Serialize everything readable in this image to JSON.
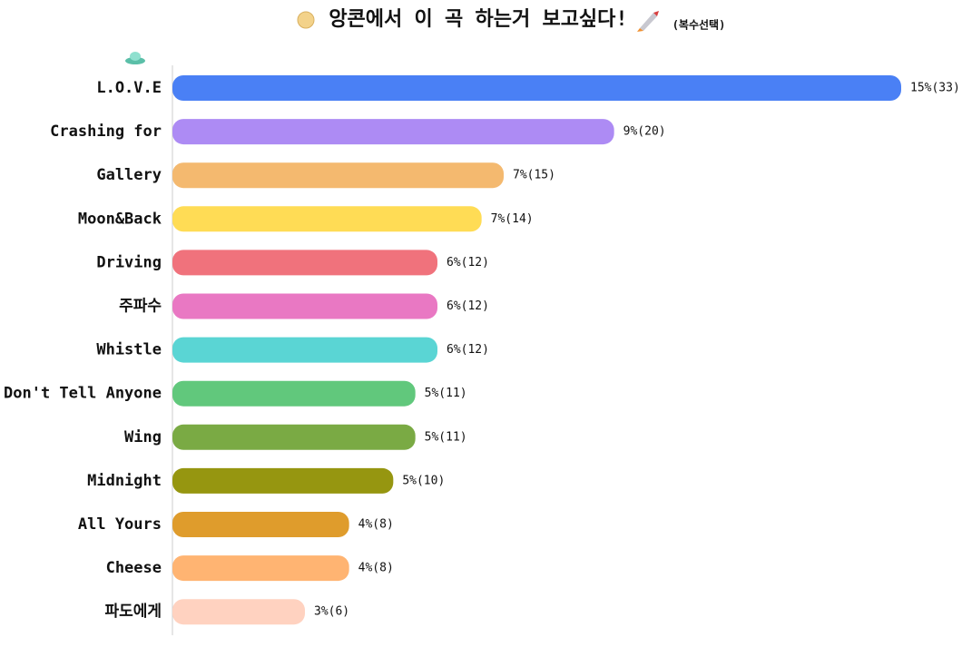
{
  "chart_data": {
    "type": "bar",
    "orientation": "horizontal",
    "title": "앙콘에서 이 곡 하는거 보고싶다!",
    "subtitle": "(복수선택)",
    "categories": [
      "L.O.V.E",
      "Crashing for",
      "Gallery",
      "Moon&Back",
      "Driving",
      "주파수",
      "Whistle",
      "Don't Tell Anyone",
      "Wing",
      "Midnight",
      "All Yours",
      "Cheese",
      "파도에게"
    ],
    "values": [
      33,
      20,
      15,
      14,
      12,
      12,
      12,
      11,
      11,
      10,
      8,
      8,
      6
    ],
    "value_labels": [
      "15%(33)",
      "9%(20)",
      "7%(15)",
      "7%(14)",
      "6%(12)",
      "6%(12)",
      "6%(12)",
      "5%(11)",
      "5%(11)",
      "5%(10)",
      "4%(8)",
      "4%(8)",
      "3%(6)"
    ],
    "colors": [
      "#4a80f5",
      "#ad8bf4",
      "#f4b96f",
      "#ffdc55",
      "#f0727c",
      "#e978c3",
      "#5ad5d4",
      "#61c87c",
      "#7aaa44",
      "#969610",
      "#df9c2c",
      "#ffb472",
      "#ffd2c0"
    ]
  }
}
